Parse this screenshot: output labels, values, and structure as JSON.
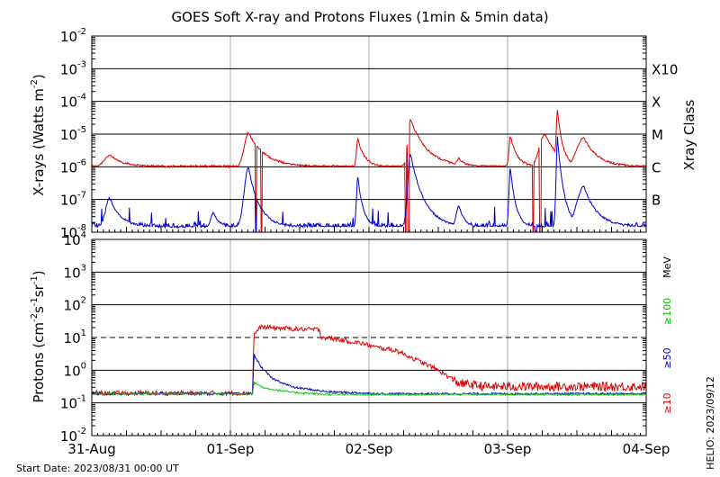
{
  "title": "GOES Soft X-ray and Protons Fluxes   (1min & 5min data)",
  "start_date": "Start Date: 2023/08/31 00:00 UT",
  "credit": "HELIO: 2023/09/12",
  "colors": {
    "long_xray": "#dd0000",
    "short_xray": "#0000cc",
    "proton_10": "#dd0000",
    "proton_50": "#0000cc",
    "proton_100": "#00cc00",
    "grid": "#000000",
    "day_divider": "#aaaaaa"
  },
  "chart_data": [
    {
      "type": "line",
      "panel": "xray",
      "ylabel_main": "X-rays (Watts m",
      "ylabel_exp": "-2",
      "ylabel_close": ")",
      "yscale": "log",
      "ylim": [
        1e-08,
        0.01
      ],
      "ytick_labels": [
        {
          "mantissa": "10",
          "exp": "-8"
        },
        {
          "mantissa": "10",
          "exp": "-7"
        },
        {
          "mantissa": "10",
          "exp": "-6"
        },
        {
          "mantissa": "10",
          "exp": "-5"
        },
        {
          "mantissa": "10",
          "exp": "-4"
        },
        {
          "mantissa": "10",
          "exp": "-3"
        },
        {
          "mantissa": "10",
          "exp": "-2"
        }
      ],
      "right_axis_title": "Xray Class",
      "xray_classes": [
        "B",
        "C",
        "M",
        "X",
        "X10"
      ],
      "xrange_days": [
        0,
        4
      ],
      "series": [
        {
          "key": "long",
          "baseline_log": -6.0,
          "events": [
            {
              "day": 0.13,
              "peak_log": -5.65,
              "rise": 0.04,
              "decay": 0.1
            },
            {
              "day": 1.13,
              "peak_log": -4.95,
              "rise": 0.03,
              "decay": 0.12
            },
            {
              "day": 1.92,
              "peak_log": -5.15,
              "rise": 0.01,
              "decay": 0.05
            },
            {
              "day": 2.3,
              "peak_log": -4.55,
              "rise": 0.02,
              "decay": 0.12
            },
            {
              "day": 2.65,
              "peak_log": -5.75,
              "rise": 0.02,
              "decay": 0.05
            },
            {
              "day": 3.02,
              "peak_log": -5.05,
              "rise": 0.01,
              "decay": 0.05
            },
            {
              "day": 3.27,
              "peak_log": -5.0,
              "rise": 0.04,
              "decay": 0.1
            },
            {
              "day": 3.36,
              "peak_log": -4.25,
              "rise": 0.01,
              "decay": 0.04
            },
            {
              "day": 3.55,
              "peak_log": -5.1,
              "rise": 0.05,
              "decay": 0.1
            }
          ],
          "dropouts": [
            [
              1.18,
              1.19
            ],
            [
              1.22,
              1.23
            ],
            [
              2.26,
              2.27
            ],
            [
              2.28,
              2.29
            ],
            [
              3.18,
              3.19
            ],
            [
              3.23,
              3.24
            ]
          ]
        },
        {
          "key": "short",
          "baseline_log": -7.85,
          "events": [
            {
              "day": 0.13,
              "peak_log": -6.95,
              "rise": 0.03,
              "decay": 0.08
            },
            {
              "day": 0.88,
              "peak_log": -7.4,
              "rise": 0.02,
              "decay": 0.04
            },
            {
              "day": 1.13,
              "peak_log": -6.0,
              "rise": 0.03,
              "decay": 0.08
            },
            {
              "day": 1.92,
              "peak_log": -6.3,
              "rise": 0.01,
              "decay": 0.04
            },
            {
              "day": 2.3,
              "peak_log": -5.6,
              "rise": 0.02,
              "decay": 0.1
            },
            {
              "day": 2.65,
              "peak_log": -7.2,
              "rise": 0.02,
              "decay": 0.04
            },
            {
              "day": 3.02,
              "peak_log": -6.0,
              "rise": 0.01,
              "decay": 0.04
            },
            {
              "day": 3.36,
              "peak_log": -5.1,
              "rise": 0.01,
              "decay": 0.05
            },
            {
              "day": 3.55,
              "peak_log": -6.6,
              "rise": 0.05,
              "decay": 0.1
            }
          ],
          "dropouts": [
            [
              1.18,
              1.19
            ],
            [
              3.2,
              3.21
            ]
          ]
        }
      ]
    },
    {
      "type": "line",
      "panel": "protons",
      "ylabel_main": "Protons (cm",
      "ylabel_exp1": "-2",
      "ylabel_mid": "s",
      "ylabel_exp2": "-1",
      "ylabel_mid2": "sr",
      "ylabel_exp3": "-1",
      "ylabel_close": ")",
      "yscale": "log",
      "ylim": [
        0.01,
        10000
      ],
      "ytick_labels": [
        {
          "mantissa": "10",
          "exp": "-2"
        },
        {
          "mantissa": "10",
          "exp": "-1"
        },
        {
          "mantissa": "10",
          "exp": "0"
        },
        {
          "mantissa": "10",
          "exp": "1"
        },
        {
          "mantissa": "10",
          "exp": "2"
        },
        {
          "mantissa": "10",
          "exp": "3"
        },
        {
          "mantissa": "10",
          "exp": "4"
        }
      ],
      "threshold": 10,
      "right_units": "MeV",
      "series_labels": [
        "≥100",
        "≥50",
        "≥10"
      ],
      "xrange_days": [
        0,
        4
      ],
      "x_tick_labels": [
        "31-Aug",
        "01-Sep",
        "02-Sep",
        "03-Sep",
        "04-Sep"
      ],
      "series": [
        {
          "key": "p10",
          "profile": [
            [
              0,
              -0.7
            ],
            [
              1.16,
              -0.7
            ],
            [
              1.17,
              1.1
            ],
            [
              1.22,
              1.32
            ],
            [
              1.3,
              1.3
            ],
            [
              1.5,
              1.25
            ],
            [
              1.6,
              1.25
            ],
            [
              1.65,
              1.24
            ],
            [
              1.65,
              1.02
            ],
            [
              1.8,
              0.92
            ],
            [
              1.95,
              0.82
            ],
            [
              2.05,
              0.7
            ],
            [
              2.2,
              0.6
            ],
            [
              2.35,
              0.3
            ],
            [
              2.5,
              0.0
            ],
            [
              2.65,
              -0.4
            ],
            [
              2.85,
              -0.5
            ],
            [
              3.5,
              -0.5
            ],
            [
              4.0,
              -0.5
            ]
          ],
          "noise": 0.07
        },
        {
          "key": "p50",
          "profile": [
            [
              0,
              -0.72
            ],
            [
              1.16,
              -0.72
            ],
            [
              1.17,
              0.48
            ],
            [
              1.22,
              0.1
            ],
            [
              1.3,
              -0.25
            ],
            [
              1.45,
              -0.52
            ],
            [
              1.7,
              -0.66
            ],
            [
              2.1,
              -0.72
            ],
            [
              4.0,
              -0.72
            ]
          ],
          "noise": 0.03
        },
        {
          "key": "p100",
          "profile": [
            [
              0,
              -0.72
            ],
            [
              1.16,
              -0.72
            ],
            [
              1.17,
              -0.38
            ],
            [
              1.25,
              -0.55
            ],
            [
              1.45,
              -0.68
            ],
            [
              1.7,
              -0.74
            ],
            [
              4.0,
              -0.74
            ]
          ],
          "noise": 0.03
        }
      ]
    }
  ]
}
